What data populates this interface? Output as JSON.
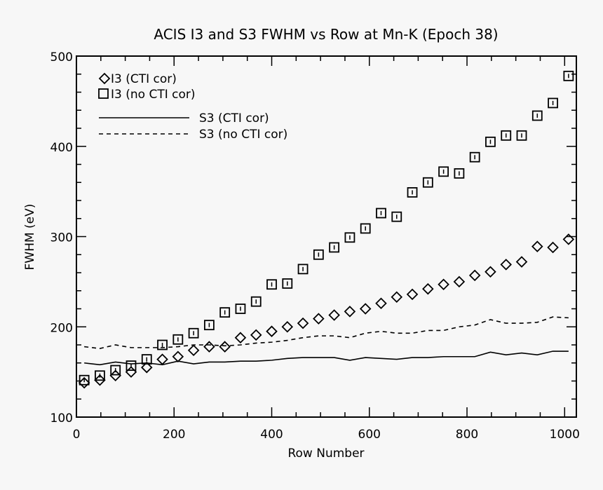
{
  "chart_data": {
    "type": "scatter",
    "title": "ACIS I3 and S3 FWHM vs Row at Mn-K (Epoch 38)",
    "xlabel": "Row Number",
    "ylabel": "FWHM (eV)",
    "xlim": [
      0,
      1024
    ],
    "ylim": [
      100,
      500
    ],
    "xticks": [
      "0",
      "200",
      "400",
      "600",
      "800",
      "1000"
    ],
    "yticks": [
      "100",
      "200",
      "300",
      "400",
      "500"
    ],
    "grid": false,
    "legend_position": "top-left",
    "x": [
      16,
      48,
      80,
      112,
      144,
      176,
      208,
      240,
      272,
      304,
      336,
      368,
      400,
      432,
      464,
      496,
      528,
      560,
      592,
      624,
      656,
      688,
      720,
      752,
      784,
      816,
      848,
      880,
      912,
      944,
      976,
      1008
    ],
    "series": [
      {
        "name": "I3 (CTI cor)",
        "marker": "diamond",
        "values": [
          138,
          141,
          146,
          150,
          155,
          164,
          167,
          174,
          178,
          178,
          188,
          191,
          195,
          200,
          204,
          209,
          213,
          217,
          220,
          226,
          233,
          236,
          242,
          247,
          250,
          257,
          261,
          269,
          272,
          289,
          288,
          297
        ]
      },
      {
        "name": "I3 (no CTI cor)",
        "marker": "square",
        "values": [
          141,
          146,
          152,
          157,
          164,
          180,
          186,
          193,
          202,
          216,
          220,
          228,
          247,
          248,
          264,
          280,
          288,
          299,
          309,
          326,
          322,
          349,
          360,
          372,
          370,
          388,
          405,
          412,
          412,
          434,
          448,
          478
        ]
      },
      {
        "name": "S3 (CTI cor)",
        "line": "solid",
        "values": [
          160,
          158,
          161,
          159,
          160,
          158,
          162,
          159,
          161,
          161,
          162,
          162,
          163,
          165,
          166,
          166,
          166,
          163,
          166,
          165,
          164,
          166,
          166,
          167,
          167,
          167,
          172,
          169,
          171,
          169,
          173,
          173
        ]
      },
      {
        "name": "S3 (no CTI cor)",
        "line": "dashed",
        "values": [
          178,
          176,
          180,
          177,
          177,
          177,
          178,
          180,
          180,
          179,
          180,
          182,
          183,
          185,
          188,
          190,
          190,
          188,
          193,
          195,
          193,
          193,
          196,
          196,
          200,
          202,
          208,
          204,
          204,
          205,
          211,
          210
        ]
      }
    ]
  }
}
